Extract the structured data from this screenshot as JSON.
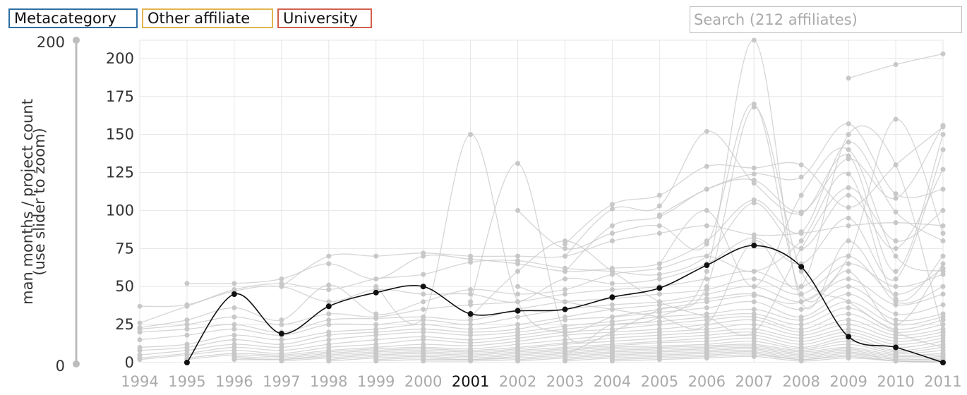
{
  "legend": [
    {
      "label": "Metacategory",
      "color": "#2f6fa3"
    },
    {
      "label": "Other affiliate",
      "color": "#e0b44e"
    },
    {
      "label": "University",
      "color": "#d2604d"
    }
  ],
  "search": {
    "placeholder": "Search (212 affiliates)"
  },
  "slider": {
    "max_label": "200",
    "min_label": "0"
  },
  "colors": {
    "background_lines": "#c8c8c8",
    "highlight": "#111111",
    "grid": "#e6e6e6"
  },
  "chart_data": {
    "type": "line",
    "title": "",
    "ylabel_line1": "man months / project count",
    "ylabel_line2": "(use slider to zoom)",
    "x": [
      1994,
      1995,
      1996,
      1997,
      1998,
      1999,
      2000,
      2001,
      2002,
      2003,
      2004,
      2005,
      2006,
      2007,
      2008,
      2009,
      2010,
      2011
    ],
    "x_tick_labels": [
      "1994",
      "1995",
      "1996",
      "1997",
      "1998",
      "1999",
      "2000",
      "2001",
      "2002",
      "2003",
      "2004",
      "2005",
      "2006",
      "2007",
      "2008",
      "2009",
      "2010",
      "2011"
    ],
    "highlighted_x_label": "2001",
    "ylim": [
      0,
      212
    ],
    "y_ticks": [
      0,
      25,
      50,
      75,
      100,
      125,
      150,
      175,
      200
    ],
    "grid": true,
    "highlighted_series": {
      "values": [
        null,
        0,
        45,
        19,
        37,
        46,
        50,
        32,
        34,
        35,
        43,
        49,
        64,
        77,
        63,
        17,
        10,
        0
      ]
    },
    "background_series": [
      {
        "values": [
          null,
          null,
          null,
          null,
          null,
          null,
          null,
          null,
          null,
          null,
          null,
          null,
          null,
          null,
          null,
          187,
          196,
          203
        ]
      },
      {
        "values": [
          null,
          null,
          null,
          null,
          null,
          null,
          null,
          null,
          null,
          null,
          null,
          97,
          114,
          124,
          122,
          157,
          111,
          114
        ]
      },
      {
        "values": [
          null,
          null,
          null,
          null,
          null,
          null,
          null,
          null,
          null,
          78,
          104,
          110,
          129,
          128,
          130,
          102,
          130,
          155
        ]
      },
      {
        "values": [
          null,
          null,
          null,
          null,
          null,
          null,
          null,
          null,
          null,
          70,
          101,
          103,
          152,
          118,
          98,
          136,
          60,
          150
        ]
      },
      {
        "values": [
          null,
          null,
          null,
          null,
          null,
          null,
          null,
          null,
          null,
          60,
          90,
          96,
          114,
          120,
          99,
          134,
          108,
          156
        ]
      },
      {
        "values": [
          null,
          null,
          null,
          null,
          null,
          50,
          30,
          150,
          40,
          20,
          30,
          35,
          40,
          44,
          40,
          70,
          160,
          85
        ]
      },
      {
        "values": [
          null,
          null,
          null,
          null,
          null,
          null,
          null,
          40,
          131,
          20,
          25,
          30,
          60,
          212,
          40,
          80,
          40,
          50
        ]
      },
      {
        "values": [
          null,
          null,
          null,
          null,
          null,
          null,
          null,
          null,
          100,
          75,
          85,
          90,
          78,
          170,
          45,
          60,
          25,
          65
        ]
      },
      {
        "values": [
          null,
          null,
          null,
          null,
          null,
          null,
          null,
          null,
          null,
          5,
          20,
          35,
          50,
          168,
          60,
          40,
          20,
          10
        ]
      },
      {
        "values": [
          null,
          null,
          null,
          50,
          70,
          70,
          72,
          70,
          70,
          70,
          80,
          85,
          90,
          84,
          85,
          90,
          92,
          90
        ]
      },
      {
        "values": [
          null,
          52,
          52,
          55,
          65,
          55,
          70,
          68,
          65,
          60,
          62,
          65,
          80,
          107,
          86,
          145,
          99,
          80
        ]
      },
      {
        "values": [
          37,
          38,
          48,
          52,
          48,
          55,
          58,
          66,
          67,
          62,
          60,
          58,
          70,
          105,
          75,
          110,
          75,
          127
        ]
      },
      {
        "values": [
          26,
          37,
          47,
          50,
          40,
          48,
          45,
          45,
          40,
          55,
          52,
          55,
          65,
          82,
          65,
          95,
          55,
          140
        ]
      },
      {
        "values": [
          23,
          28,
          36,
          28,
          51,
          32,
          40,
          48,
          45,
          48,
          58,
          62,
          70,
          60,
          80,
          124,
          42,
          70
        ]
      },
      {
        "values": [
          22,
          25,
          30,
          25,
          32,
          30,
          35,
          38,
          40,
          45,
          48,
          50,
          55,
          60,
          50,
          70,
          45,
          62
        ]
      },
      {
        "values": [
          20,
          22,
          25,
          20,
          28,
          29,
          30,
          28,
          35,
          40,
          42,
          45,
          48,
          55,
          45,
          65,
          50,
          58
        ]
      },
      {
        "values": [
          15,
          18,
          22,
          18,
          25,
          25,
          28,
          25,
          30,
          35,
          38,
          40,
          45,
          50,
          40,
          55,
          38,
          45
        ]
      },
      {
        "values": [
          10,
          12,
          18,
          15,
          20,
          22,
          25,
          22,
          25,
          30,
          35,
          38,
          42,
          45,
          35,
          50,
          32,
          38
        ]
      },
      {
        "values": [
          8,
          10,
          15,
          12,
          18,
          20,
          22,
          20,
          22,
          28,
          30,
          33,
          36,
          40,
          30,
          45,
          28,
          32
        ]
      },
      {
        "values": [
          5,
          8,
          12,
          10,
          15,
          18,
          20,
          18,
          20,
          24,
          27,
          30,
          32,
          35,
          28,
          40,
          25,
          30
        ]
      },
      {
        "values": [
          3,
          6,
          10,
          8,
          12,
          15,
          17,
          15,
          18,
          22,
          25,
          27,
          30,
          32,
          25,
          36,
          22,
          28
        ]
      },
      {
        "values": [
          2,
          5,
          8,
          6,
          10,
          12,
          15,
          13,
          16,
          20,
          22,
          25,
          28,
          30,
          22,
          32,
          20,
          25
        ]
      },
      {
        "values": [
          null,
          3,
          6,
          5,
          8,
          10,
          12,
          11,
          14,
          18,
          20,
          22,
          25,
          28,
          20,
          28,
          18,
          22
        ]
      },
      {
        "values": [
          null,
          2,
          5,
          4,
          7,
          9,
          10,
          9,
          12,
          15,
          18,
          20,
          22,
          25,
          18,
          25,
          16,
          20
        ]
      },
      {
        "values": [
          null,
          null,
          4,
          3,
          6,
          8,
          9,
          8,
          10,
          13,
          16,
          18,
          20,
          22,
          16,
          22,
          14,
          18
        ]
      },
      {
        "values": [
          null,
          null,
          3,
          2,
          5,
          7,
          8,
          7,
          9,
          12,
          14,
          16,
          18,
          20,
          14,
          20,
          12,
          16
        ]
      },
      {
        "values": [
          null,
          null,
          2,
          2,
          4,
          6,
          7,
          6,
          8,
          10,
          12,
          14,
          16,
          18,
          12,
          18,
          10,
          14
        ]
      },
      {
        "values": [
          null,
          null,
          null,
          1,
          3,
          5,
          6,
          5,
          7,
          9,
          11,
          13,
          14,
          16,
          10,
          16,
          8,
          12
        ]
      },
      {
        "values": [
          null,
          null,
          null,
          null,
          2,
          4,
          5,
          4,
          6,
          8,
          10,
          11,
          12,
          14,
          9,
          14,
          7,
          10
        ]
      },
      {
        "values": [
          null,
          null,
          null,
          null,
          1,
          3,
          4,
          3,
          5,
          7,
          9,
          10,
          11,
          12,
          8,
          12,
          6,
          8
        ]
      },
      {
        "values": [
          null,
          null,
          null,
          null,
          null,
          2,
          3,
          2,
          4,
          6,
          8,
          9,
          10,
          11,
          7,
          10,
          5,
          6
        ]
      },
      {
        "values": [
          null,
          null,
          null,
          null,
          null,
          1,
          2,
          2,
          3,
          5,
          7,
          8,
          9,
          10,
          6,
          9,
          4,
          5
        ]
      },
      {
        "values": [
          null,
          null,
          null,
          null,
          null,
          null,
          1,
          1,
          2,
          4,
          6,
          7,
          8,
          9,
          5,
          8,
          3,
          4
        ]
      },
      {
        "values": [
          null,
          null,
          null,
          null,
          null,
          null,
          null,
          null,
          1,
          3,
          5,
          6,
          7,
          8,
          4,
          7,
          2,
          3
        ]
      },
      {
        "values": [
          null,
          null,
          null,
          null,
          null,
          null,
          null,
          null,
          null,
          2,
          4,
          5,
          6,
          7,
          3,
          6,
          2,
          2
        ]
      },
      {
        "values": [
          null,
          null,
          null,
          null,
          null,
          null,
          null,
          null,
          null,
          1,
          3,
          4,
          5,
          6,
          2,
          5,
          1,
          1
        ]
      },
      {
        "values": [
          null,
          null,
          null,
          null,
          null,
          null,
          null,
          null,
          null,
          null,
          2,
          3,
          4,
          5,
          2,
          4,
          1,
          1
        ]
      },
      {
        "values": [
          null,
          null,
          null,
          null,
          null,
          null,
          null,
          null,
          null,
          null,
          1,
          2,
          3,
          4,
          1,
          3,
          1,
          0
        ]
      },
      {
        "values": [
          null,
          null,
          null,
          null,
          null,
          null,
          null,
          30,
          60,
          80,
          60,
          40,
          30,
          20,
          75,
          115,
          80,
          100
        ]
      },
      {
        "values": [
          null,
          null,
          null,
          null,
          null,
          null,
          null,
          null,
          50,
          40,
          35,
          30,
          25,
          80,
          50,
          150,
          130,
          20
        ]
      },
      {
        "values": [
          null,
          null,
          null,
          null,
          null,
          null,
          null,
          null,
          null,
          null,
          null,
          65,
          100,
          50,
          110,
          140,
          70,
          60
        ]
      }
    ]
  }
}
